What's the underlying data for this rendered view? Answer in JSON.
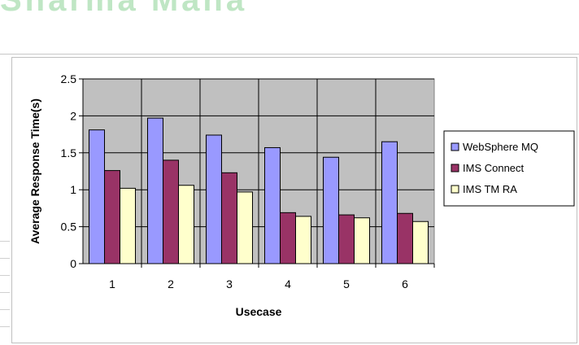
{
  "watermark": "Sharma Mana",
  "chart_data": {
    "type": "bar",
    "categories": [
      "1",
      "2",
      "3",
      "4",
      "5",
      "6"
    ],
    "series": [
      {
        "name": "WebSphere MQ",
        "color": "#9999ff",
        "values": [
          1.81,
          1.97,
          1.74,
          1.57,
          1.44,
          1.65
        ]
      },
      {
        "name": "IMS Connect",
        "color": "#993366",
        "values": [
          1.26,
          1.4,
          1.23,
          0.69,
          0.66,
          0.68
        ]
      },
      {
        "name": "IMS TM RA",
        "color": "#ffffcc",
        "values": [
          1.02,
          1.06,
          0.97,
          0.64,
          0.62,
          0.57
        ]
      }
    ],
    "xlabel": "Usecase",
    "ylabel": "Average Response Time(s)",
    "ylim": [
      0,
      2.5
    ],
    "yticks": [
      "0",
      "0.5",
      "1",
      "1.5",
      "2",
      "2.5"
    ],
    "plot_background": "#c0c0c0",
    "grid": true,
    "legend_position": "right"
  }
}
